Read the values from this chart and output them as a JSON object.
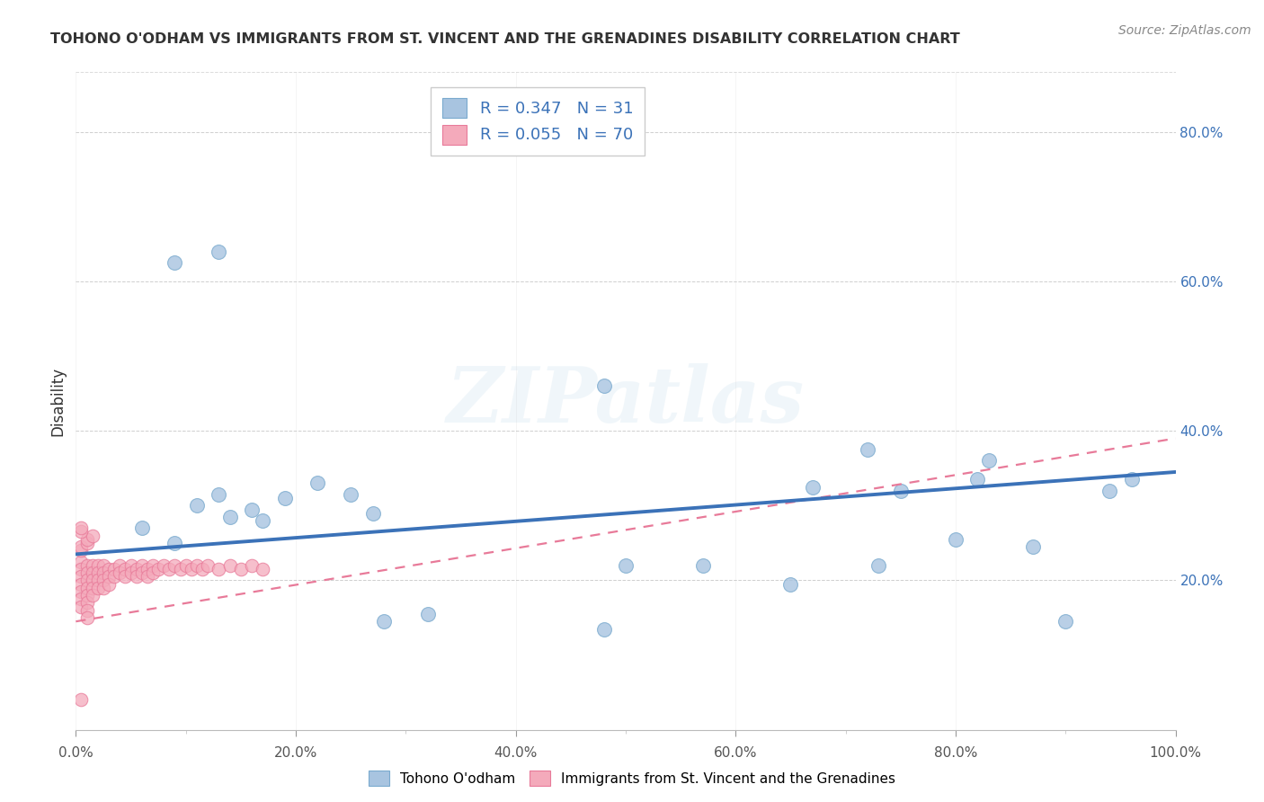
{
  "title": "TOHONO O'ODHAM VS IMMIGRANTS FROM ST. VINCENT AND THE GRENADINES DISABILITY CORRELATION CHART",
  "source": "Source: ZipAtlas.com",
  "ylabel": "Disability",
  "xlim": [
    0,
    1.0
  ],
  "ylim": [
    0,
    0.88
  ],
  "xtick_labels": [
    "0.0%",
    "",
    "",
    "",
    "",
    "",
    "",
    "",
    "",
    "20.0%",
    "",
    "",
    "",
    "",
    "",
    "",
    "",
    "",
    "",
    "40.0%",
    "",
    "",
    "",
    "",
    "",
    "",
    "",
    "",
    "",
    "60.0%",
    "",
    "",
    "",
    "",
    "",
    "",
    "",
    "",
    "",
    "80.0%",
    "",
    "",
    "",
    "",
    "",
    "",
    "",
    "",
    "",
    "100.0%"
  ],
  "xtick_vals": [
    0.0,
    0.02,
    0.04,
    0.06,
    0.08,
    0.1,
    0.12,
    0.14,
    0.16,
    0.18,
    0.2,
    0.22,
    0.24,
    0.26,
    0.28,
    0.3,
    0.32,
    0.34,
    0.36,
    0.38,
    0.4,
    0.42,
    0.44,
    0.46,
    0.48,
    0.5,
    0.52,
    0.54,
    0.56,
    0.58,
    0.6,
    0.62,
    0.64,
    0.66,
    0.68,
    0.7,
    0.72,
    0.74,
    0.76,
    0.78,
    0.8,
    0.82,
    0.84,
    0.86,
    0.88,
    0.9,
    0.92,
    0.94,
    0.96,
    0.98,
    1.0
  ],
  "major_xtick_vals": [
    0.0,
    0.2,
    0.4,
    0.6,
    0.8,
    1.0
  ],
  "major_xtick_labels": [
    "0.0%",
    "20.0%",
    "40.0%",
    "60.0%",
    "80.0%",
    "100.0%"
  ],
  "ytick_labels": [
    "20.0%",
    "40.0%",
    "60.0%",
    "80.0%"
  ],
  "ytick_vals": [
    0.2,
    0.4,
    0.6,
    0.8
  ],
  "legend1_label": "R = 0.347   N = 31",
  "legend2_label": "R = 0.055   N = 70",
  "blue_color": "#A8C4E0",
  "pink_color": "#F4AABB",
  "blue_marker_edge": "#7AAACE",
  "pink_marker_edge": "#E87A99",
  "blue_line_color": "#3B72B8",
  "pink_line_color": "#E87A99",
  "grid_color": "#BBBBBB",
  "watermark_text": "ZIPatlas",
  "blue_scatter_x": [
    0.13,
    0.09,
    0.06,
    0.09,
    0.11,
    0.14,
    0.17,
    0.13,
    0.16,
    0.19,
    0.22,
    0.25,
    0.27,
    0.28,
    0.32,
    0.48,
    0.57,
    0.65,
    0.67,
    0.72,
    0.73,
    0.75,
    0.8,
    0.82,
    0.83,
    0.87,
    0.9,
    0.94,
    0.96,
    0.5,
    0.48
  ],
  "blue_scatter_y": [
    0.64,
    0.625,
    0.27,
    0.25,
    0.3,
    0.285,
    0.28,
    0.315,
    0.295,
    0.31,
    0.33,
    0.315,
    0.29,
    0.145,
    0.155,
    0.46,
    0.22,
    0.195,
    0.325,
    0.375,
    0.22,
    0.32,
    0.255,
    0.335,
    0.36,
    0.245,
    0.145,
    0.32,
    0.335,
    0.22,
    0.135
  ],
  "pink_scatter_x": [
    0.005,
    0.005,
    0.005,
    0.005,
    0.005,
    0.005,
    0.005,
    0.005,
    0.01,
    0.01,
    0.01,
    0.01,
    0.01,
    0.01,
    0.01,
    0.01,
    0.015,
    0.015,
    0.015,
    0.015,
    0.015,
    0.02,
    0.02,
    0.02,
    0.02,
    0.025,
    0.025,
    0.025,
    0.025,
    0.03,
    0.03,
    0.03,
    0.035,
    0.035,
    0.04,
    0.04,
    0.045,
    0.045,
    0.05,
    0.05,
    0.055,
    0.055,
    0.06,
    0.06,
    0.065,
    0.065,
    0.07,
    0.07,
    0.075,
    0.08,
    0.085,
    0.09,
    0.095,
    0.1,
    0.105,
    0.11,
    0.115,
    0.12,
    0.13,
    0.14,
    0.15,
    0.16,
    0.17,
    0.005,
    0.005,
    0.01,
    0.01,
    0.015,
    0.005,
    0.005
  ],
  "pink_scatter_y": [
    0.225,
    0.215,
    0.205,
    0.195,
    0.185,
    0.175,
    0.165,
    0.04,
    0.22,
    0.21,
    0.2,
    0.19,
    0.18,
    0.17,
    0.16,
    0.15,
    0.22,
    0.21,
    0.2,
    0.19,
    0.18,
    0.22,
    0.21,
    0.2,
    0.19,
    0.22,
    0.21,
    0.2,
    0.19,
    0.215,
    0.205,
    0.195,
    0.215,
    0.205,
    0.22,
    0.21,
    0.215,
    0.205,
    0.22,
    0.21,
    0.215,
    0.205,
    0.22,
    0.21,
    0.215,
    0.205,
    0.22,
    0.21,
    0.215,
    0.22,
    0.215,
    0.22,
    0.215,
    0.22,
    0.215,
    0.22,
    0.215,
    0.22,
    0.215,
    0.22,
    0.215,
    0.22,
    0.215,
    0.24,
    0.245,
    0.25,
    0.255,
    0.26,
    0.265,
    0.27
  ],
  "blue_trend_x": [
    0.0,
    1.0
  ],
  "blue_trend_y": [
    0.235,
    0.345
  ],
  "pink_trend_x": [
    0.0,
    1.0
  ],
  "pink_trend_y": [
    0.145,
    0.39
  ],
  "fig_width": 14.06,
  "fig_height": 8.92,
  "dpi": 100
}
